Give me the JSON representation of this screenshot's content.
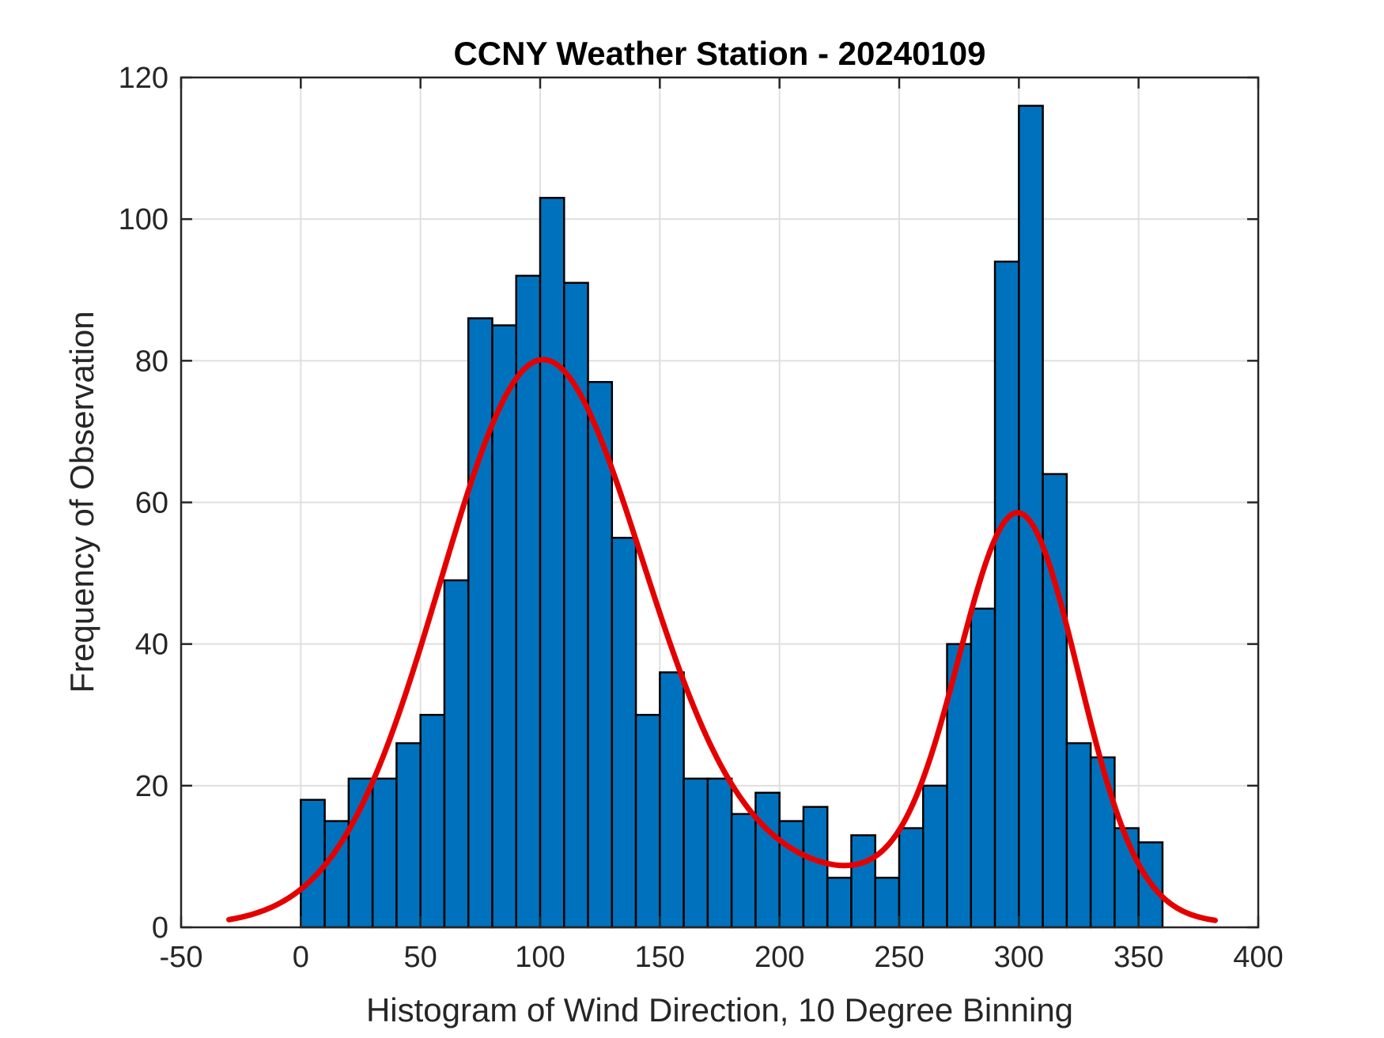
{
  "chart_data": {
    "type": "bar",
    "title": "CCNY Weather Station - 20240109",
    "xlabel": "Histogram of Wind Direction, 10 Degree Binning",
    "ylabel": "Frequency of Observation",
    "xlim": [
      -50,
      400
    ],
    "ylim": [
      0,
      120
    ],
    "xticks": [
      -50,
      0,
      50,
      100,
      150,
      200,
      250,
      300,
      350,
      400
    ],
    "yticks": [
      0,
      20,
      40,
      60,
      80,
      100,
      120
    ],
    "grid": true,
    "bin_width": 10,
    "bin_start": 0,
    "bar_color": "#0072BD",
    "bar_edge_color": "#000000",
    "values": [
      18,
      15,
      21,
      21,
      26,
      30,
      49,
      86,
      85,
      92,
      103,
      91,
      77,
      55,
      30,
      36,
      21,
      21,
      16,
      19,
      15,
      17,
      7,
      13,
      7,
      14,
      20,
      40,
      45,
      94,
      116,
      64,
      26,
      24,
      14,
      12
    ],
    "fit_curve": {
      "color": "#E50000",
      "x_range": [
        -30,
        382
      ],
      "components": [
        {
          "amplitude": 75,
          "mean": 100,
          "sigma": 42
        },
        {
          "amplitude": 55,
          "mean": 300,
          "sigma": 25
        },
        {
          "amplitude": 8,
          "mean": 185,
          "sigma": 90
        }
      ]
    }
  }
}
